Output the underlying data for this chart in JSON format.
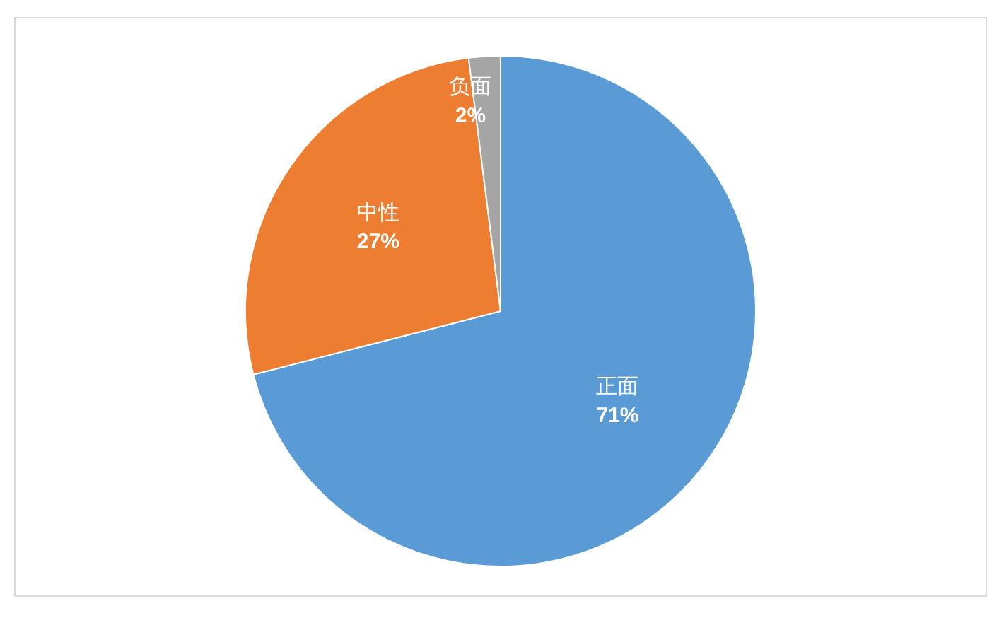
{
  "chart_data": {
    "type": "pie",
    "categories": [
      "正面",
      "中性",
      "负面"
    ],
    "values": [
      71,
      27,
      2
    ],
    "colors": [
      "#5b9bd5",
      "#ed7d31",
      "#a5a5a5"
    ],
    "value_labels": [
      "71%",
      "27%",
      "2%"
    ],
    "legend": false
  }
}
